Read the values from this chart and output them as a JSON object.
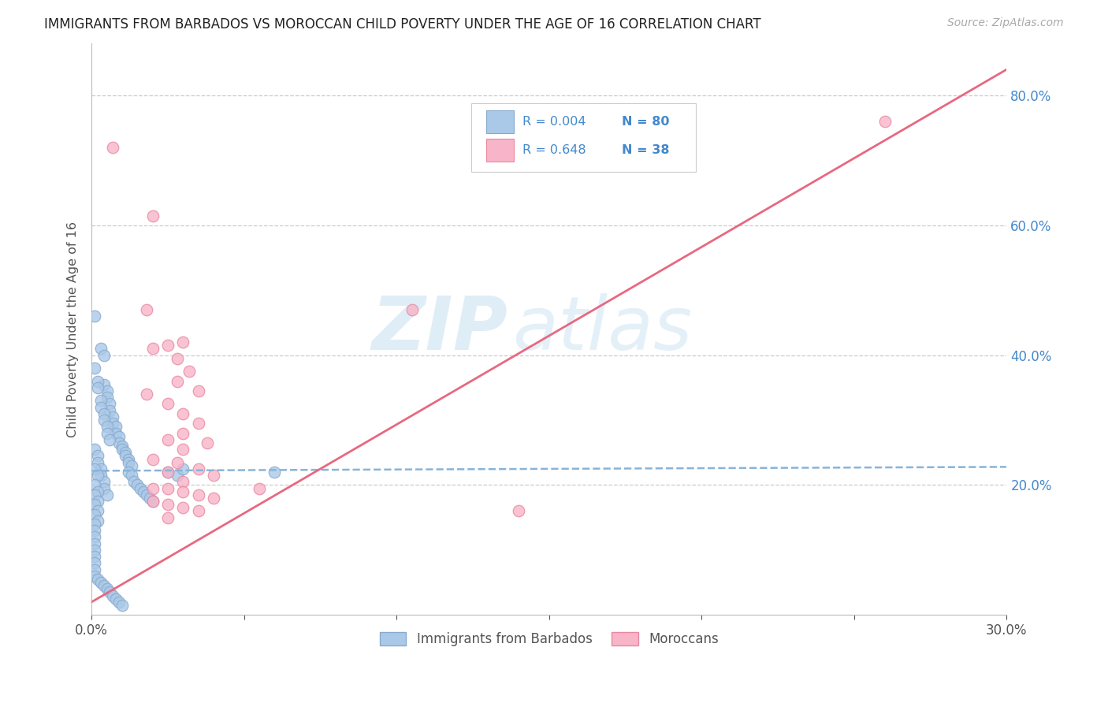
{
  "title": "IMMIGRANTS FROM BARBADOS VS MOROCCAN CHILD POVERTY UNDER THE AGE OF 16 CORRELATION CHART",
  "source": "Source: ZipAtlas.com",
  "ylabel": "Child Poverty Under the Age of 16",
  "xlim": [
    0.0,
    0.3
  ],
  "ylim": [
    0.0,
    0.88
  ],
  "right_yticks": [
    0.2,
    0.4,
    0.6,
    0.8
  ],
  "right_yticklabels": [
    "20.0%",
    "40.0%",
    "60.0%",
    "80.0%"
  ],
  "xticks": [
    0.0,
    0.05,
    0.1,
    0.15,
    0.2,
    0.25,
    0.3
  ],
  "xticklabels": [
    "0.0%",
    "",
    "",
    "",
    "",
    "",
    "30.0%"
  ],
  "series1_color": "#aac8e8",
  "series1_edge": "#88aacc",
  "series2_color": "#f8b4c8",
  "series2_edge": "#e888a0",
  "line1_color": "#88b4d8",
  "line2_color": "#e86880",
  "legend_label1": "Immigrants from Barbados",
  "legend_label2": "Moroccans",
  "watermark_zip": "ZIP",
  "watermark_atlas": "atlas",
  "title_color": "#222222",
  "axis_label_color": "#555555",
  "right_tick_color": "#4488cc",
  "legend_text_color": "#4488cc",
  "grid_color": "#cccccc",
  "barbados_points": [
    [
      0.001,
      0.46
    ],
    [
      0.003,
      0.41
    ],
    [
      0.004,
      0.4
    ],
    [
      0.004,
      0.355
    ],
    [
      0.005,
      0.345
    ],
    [
      0.005,
      0.335
    ],
    [
      0.006,
      0.325
    ],
    [
      0.006,
      0.315
    ],
    [
      0.007,
      0.305
    ],
    [
      0.007,
      0.295
    ],
    [
      0.008,
      0.29
    ],
    [
      0.008,
      0.28
    ],
    [
      0.009,
      0.275
    ],
    [
      0.009,
      0.265
    ],
    [
      0.01,
      0.26
    ],
    [
      0.01,
      0.255
    ],
    [
      0.011,
      0.25
    ],
    [
      0.011,
      0.245
    ],
    [
      0.012,
      0.24
    ],
    [
      0.012,
      0.235
    ],
    [
      0.013,
      0.23
    ],
    [
      0.001,
      0.38
    ],
    [
      0.002,
      0.36
    ],
    [
      0.002,
      0.35
    ],
    [
      0.003,
      0.33
    ],
    [
      0.003,
      0.32
    ],
    [
      0.004,
      0.31
    ],
    [
      0.004,
      0.3
    ],
    [
      0.005,
      0.29
    ],
    [
      0.005,
      0.28
    ],
    [
      0.006,
      0.27
    ],
    [
      0.001,
      0.255
    ],
    [
      0.002,
      0.245
    ],
    [
      0.002,
      0.235
    ],
    [
      0.003,
      0.225
    ],
    [
      0.003,
      0.215
    ],
    [
      0.004,
      0.205
    ],
    [
      0.004,
      0.195
    ],
    [
      0.005,
      0.185
    ],
    [
      0.001,
      0.225
    ],
    [
      0.002,
      0.215
    ],
    [
      0.001,
      0.2
    ],
    [
      0.002,
      0.19
    ],
    [
      0.001,
      0.185
    ],
    [
      0.002,
      0.175
    ],
    [
      0.001,
      0.17
    ],
    [
      0.002,
      0.16
    ],
    [
      0.001,
      0.155
    ],
    [
      0.002,
      0.145
    ],
    [
      0.001,
      0.14
    ],
    [
      0.001,
      0.13
    ],
    [
      0.001,
      0.12
    ],
    [
      0.001,
      0.11
    ],
    [
      0.001,
      0.1
    ],
    [
      0.001,
      0.09
    ],
    [
      0.001,
      0.08
    ],
    [
      0.001,
      0.07
    ],
    [
      0.001,
      0.06
    ],
    [
      0.002,
      0.055
    ],
    [
      0.003,
      0.05
    ],
    [
      0.004,
      0.045
    ],
    [
      0.005,
      0.04
    ],
    [
      0.006,
      0.035
    ],
    [
      0.007,
      0.03
    ],
    [
      0.008,
      0.025
    ],
    [
      0.009,
      0.02
    ],
    [
      0.01,
      0.015
    ],
    [
      0.012,
      0.22
    ],
    [
      0.013,
      0.215
    ],
    [
      0.014,
      0.205
    ],
    [
      0.015,
      0.2
    ],
    [
      0.016,
      0.195
    ],
    [
      0.017,
      0.19
    ],
    [
      0.018,
      0.185
    ],
    [
      0.019,
      0.18
    ],
    [
      0.02,
      0.175
    ],
    [
      0.025,
      0.22
    ],
    [
      0.028,
      0.215
    ],
    [
      0.03,
      0.225
    ],
    [
      0.06,
      0.22
    ]
  ],
  "moroccan_points": [
    [
      0.007,
      0.72
    ],
    [
      0.02,
      0.615
    ],
    [
      0.018,
      0.47
    ],
    [
      0.03,
      0.42
    ],
    [
      0.025,
      0.415
    ],
    [
      0.02,
      0.41
    ],
    [
      0.028,
      0.395
    ],
    [
      0.032,
      0.375
    ],
    [
      0.028,
      0.36
    ],
    [
      0.035,
      0.345
    ],
    [
      0.018,
      0.34
    ],
    [
      0.025,
      0.325
    ],
    [
      0.03,
      0.31
    ],
    [
      0.035,
      0.295
    ],
    [
      0.03,
      0.28
    ],
    [
      0.025,
      0.27
    ],
    [
      0.038,
      0.265
    ],
    [
      0.03,
      0.255
    ],
    [
      0.02,
      0.24
    ],
    [
      0.028,
      0.235
    ],
    [
      0.035,
      0.225
    ],
    [
      0.04,
      0.215
    ],
    [
      0.025,
      0.22
    ],
    [
      0.03,
      0.205
    ],
    [
      0.02,
      0.195
    ],
    [
      0.025,
      0.195
    ],
    [
      0.03,
      0.19
    ],
    [
      0.035,
      0.185
    ],
    [
      0.04,
      0.18
    ],
    [
      0.02,
      0.175
    ],
    [
      0.025,
      0.17
    ],
    [
      0.03,
      0.165
    ],
    [
      0.035,
      0.16
    ],
    [
      0.025,
      0.15
    ],
    [
      0.14,
      0.16
    ],
    [
      0.26,
      0.76
    ],
    [
      0.105,
      0.47
    ],
    [
      0.055,
      0.195
    ]
  ],
  "line1_x": [
    0.0,
    0.3
  ],
  "line1_y": [
    0.222,
    0.228
  ],
  "line2_x": [
    0.0,
    0.3
  ],
  "line2_y": [
    0.02,
    0.84
  ]
}
